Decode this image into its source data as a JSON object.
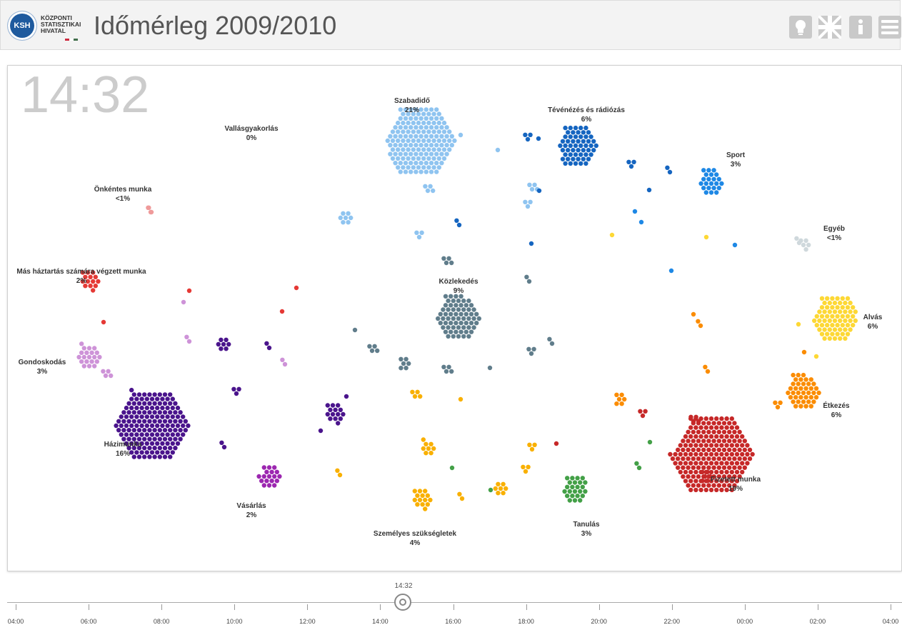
{
  "header": {
    "logo_abbr": "KSH",
    "logo_text": "KÖZPONTI\nSTATISZTIKAI\nHIVATAL",
    "title": "Időmérleg 2009/2010",
    "buttons": [
      "lightbulb-icon",
      "uk-flag-icon",
      "info-icon",
      "menu-icon"
    ]
  },
  "clock": "14:32",
  "categories": [
    {
      "name": "Szabadidő",
      "pct": "21%",
      "color": "#8fc4f0"
    },
    {
      "name": "Tévénézés és rádiózás",
      "pct": "6%",
      "color": "#1565c0"
    },
    {
      "name": "Vallásgyakorlás",
      "pct": "0%",
      "color": "#999999"
    },
    {
      "name": "Önkéntes munka",
      "pct": "<1%",
      "color": "#ef9a9a"
    },
    {
      "name": "Sport",
      "pct": "3%",
      "color": "#1e88e5"
    },
    {
      "name": "Egyéb",
      "pct": "<1%",
      "color": "#cfd8dc"
    },
    {
      "name": "Más háztartás számára végzett munka",
      "pct": "2%",
      "color": "#e53935"
    },
    {
      "name": "Közlekedés",
      "pct": "9%",
      "color": "#607d8b"
    },
    {
      "name": "Alvás",
      "pct": "6%",
      "color": "#fdd835"
    },
    {
      "name": "Gondoskodás",
      "pct": "3%",
      "color": "#ce93d8"
    },
    {
      "name": "Étkezés",
      "pct": "6%",
      "color": "#fb8c00"
    },
    {
      "name": "Házimunka",
      "pct": "16%",
      "color": "#4a148c"
    },
    {
      "name": "Fizetett munka",
      "pct": "19%",
      "color": "#c62828"
    },
    {
      "name": "Vásárlás",
      "pct": "2%",
      "color": "#9c27b0"
    },
    {
      "name": "Tanulás",
      "pct": "3%",
      "color": "#43a047"
    },
    {
      "name": "Személyes szükségletek",
      "pct": "4%",
      "color": "#f9b000"
    }
  ],
  "timeline": {
    "current": "14:32",
    "ticks": [
      "04:00",
      "06:00",
      "08:00",
      "10:00",
      "12:00",
      "14:00",
      "16:00",
      "18:00",
      "20:00",
      "22:00",
      "00:00",
      "02:00",
      "04:00"
    ]
  }
}
